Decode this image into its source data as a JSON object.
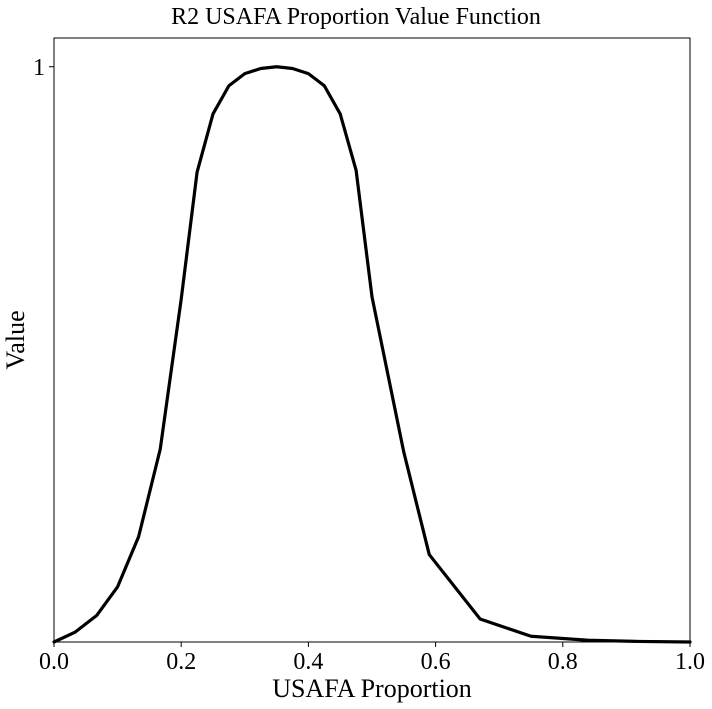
{
  "chart_data": {
    "type": "line",
    "title": "R2 USAFA Proportion Value Function",
    "xlabel": "USAFA Proportion",
    "ylabel": "Value",
    "xlim": [
      0.0,
      1.0
    ],
    "ylim": [
      0.0,
      1.05
    ],
    "x_ticks": [
      "0.0",
      "0.2",
      "0.4",
      "0.6",
      "0.8",
      "1.0"
    ],
    "y_ticks": [
      "1"
    ],
    "grid": false,
    "line_color": "#000000",
    "series": [
      {
        "x": [
          0.0,
          0.033,
          0.067,
          0.1,
          0.133,
          0.167,
          0.2,
          0.225,
          0.25,
          0.275,
          0.3,
          0.325,
          0.35,
          0.375,
          0.4,
          0.425,
          0.45,
          0.475,
          0.5,
          0.55,
          0.59,
          0.67,
          0.75,
          0.84,
          0.92,
          1.0
        ],
        "y": [
          0.0,
          0.017,
          0.046,
          0.096,
          0.183,
          0.335,
          0.596,
          0.817,
          0.918,
          0.967,
          0.988,
          0.997,
          1.0,
          0.997,
          0.988,
          0.967,
          0.918,
          0.82,
          0.6,
          0.33,
          0.152,
          0.04,
          0.01,
          0.003,
          0.001,
          0.0
        ]
      }
    ]
  }
}
